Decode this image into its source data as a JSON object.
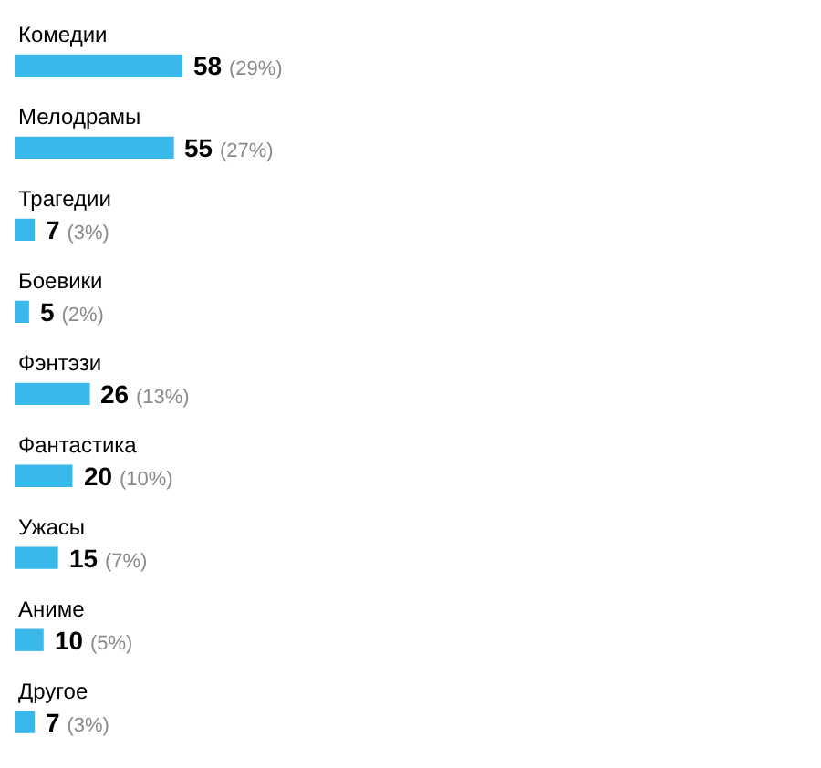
{
  "chart_data": {
    "type": "bar",
    "orientation": "horizontal",
    "categories": [
      "Комедии",
      "Мелодрамы",
      "Трагедии",
      "Боевики",
      "Фэнтэзи",
      "Фантастика",
      "Ужасы",
      "Аниме",
      "Другое"
    ],
    "values": [
      58,
      55,
      7,
      5,
      26,
      20,
      15,
      10,
      7
    ],
    "value_labels": [
      "58 (29%)",
      "55 (27%)",
      "7 (3%)",
      "5 (2%)",
      "26 (13%)",
      "20 (10%)",
      "15 (7%)",
      "10 (5%)",
      "7 (3%)"
    ],
    "color": "#3ab8ea",
    "legend": false
  }
}
